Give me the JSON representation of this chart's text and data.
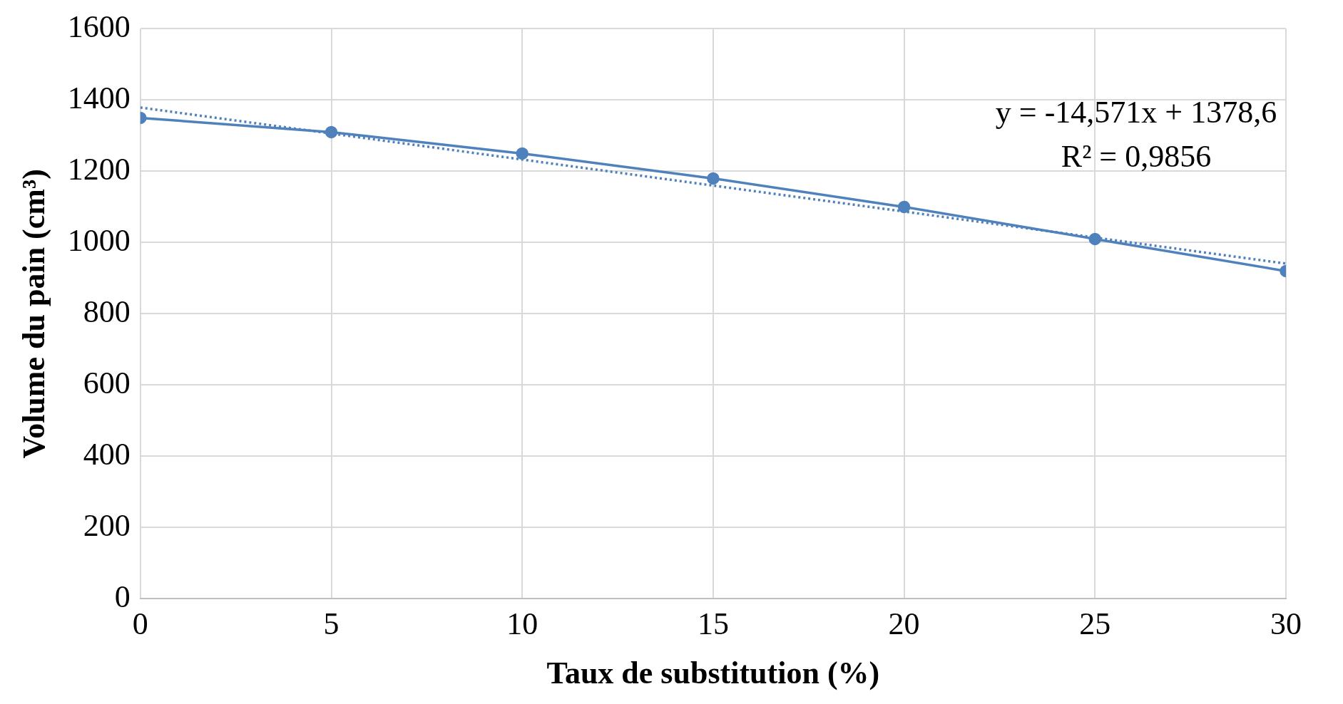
{
  "chart_data": {
    "type": "line",
    "xlabel": "Taux de substitution (%)",
    "ylabel": "Volume du pain (cm³)",
    "x": [
      0,
      5,
      10,
      15,
      20,
      25,
      30
    ],
    "series": [
      {
        "color": "#4f81bd",
        "values": [
          1350,
          1310,
          1250,
          1180,
          1100,
          1010,
          920
        ],
        "marker": "circle",
        "line_style": "solid"
      },
      {
        "type": "line",
        "color": "#4f81bd",
        "x": [
          0,
          30
        ],
        "values": [
          1379,
          941
        ],
        "marker": "none",
        "line_style": "dotted"
      }
    ],
    "xlim": [
      0,
      30
    ],
    "xticks": [
      0,
      5,
      10,
      15,
      20,
      25,
      30
    ],
    "ylim": [
      0,
      1600
    ],
    "yticks": [
      0,
      200,
      400,
      600,
      800,
      1000,
      1200,
      1400,
      1600
    ],
    "grid": true,
    "legend": false,
    "annotations": [
      "y = -14,571x + 1378,6",
      "R² = 0,9856"
    ]
  }
}
